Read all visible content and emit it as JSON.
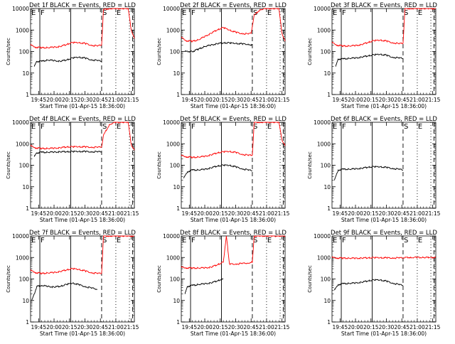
{
  "figure": {
    "panels": [
      {
        "title": "Det 1f BLACK = Events, RED = LLD",
        "ylabel": "Counts/sec",
        "xlabel": "Start Time (01-Apr-15 18:36:00)"
      },
      {
        "title": "Det 2f BLACK = Events, RED = LLD",
        "ylabel": "Counts/sec",
        "xlabel": "Start Time (01-Apr-15 18:36:00)"
      },
      {
        "title": "Det 3f BLACK = Events, RED = LLD",
        "ylabel": "Counts/sec",
        "xlabel": "Start Time (01-Apr-15 18:36:00)"
      },
      {
        "title": "Det 4f BLACK = Events, RED = LLD",
        "ylabel": "Counts/sec",
        "xlabel": "Start Time (01-Apr-15 18:36:00)"
      },
      {
        "title": "Det 5f BLACK = Events, RED = LLD",
        "ylabel": "Counts/sec",
        "xlabel": "Start Time (01-Apr-15 18:36:00)"
      },
      {
        "title": "Det 6f BLACK = Events, RED = LLD",
        "ylabel": "Counts/sec",
        "xlabel": "Start Time (01-Apr-15 18:36:00)"
      },
      {
        "title": "Det 7f BLACK = Events, RED = LLD",
        "ylabel": "Counts/sec",
        "xlabel": "Start Time (01-Apr-15 18:36:00)"
      },
      {
        "title": "Det 8f BLACK = Events, RED = LLD",
        "ylabel": "Counts/sec",
        "xlabel": "Start Time (01-Apr-15 18:36:00)"
      },
      {
        "title": "Det 9f BLACK = Events, RED = LLD",
        "ylabel": "Counts/sec",
        "xlabel": "Start Time (01-Apr-15 18:36:00)"
      }
    ],
    "x_tick_labels": [
      "19:45",
      "20:00",
      "20:15",
      "20:30",
      "20:45",
      "21:00",
      "21:15"
    ],
    "y_tick_labels": [
      "1",
      "10",
      "100",
      "1000",
      "10000"
    ],
    "marker_labels": [
      {
        "text": "E",
        "time": 19.62
      },
      {
        "text": "F",
        "time": 19.77
      },
      {
        "text": "S",
        "time": 20.77
      },
      {
        "text": "E",
        "time": 21.0
      }
    ]
  },
  "colors": {
    "events": "#000000",
    "lld": "#ff0000",
    "axes": "#000000"
  },
  "chart_data": [
    {
      "type": "line",
      "panel": 1,
      "y_scale": "log",
      "ylim": [
        1,
        10000
      ],
      "xlim": [
        19.62,
        21.3
      ],
      "x_unit": "hours UT",
      "series": [
        {
          "color": "black",
          "x": [
            19.68,
            19.72,
            19.8,
            19.9,
            20.0,
            20.1,
            20.2,
            20.3,
            20.4,
            20.5,
            20.6,
            20.7,
            20.77
          ],
          "values": [
            20,
            35,
            35,
            40,
            38,
            35,
            40,
            50,
            55,
            50,
            42,
            38,
            35
          ]
        },
        {
          "color": "red",
          "x": [
            19.62,
            19.7,
            19.8,
            19.9,
            20.0,
            20.1,
            20.2,
            20.3,
            20.4,
            20.5,
            20.6,
            20.7,
            20.77,
            20.8,
            20.9,
            21.0,
            21.1,
            21.2,
            21.25,
            21.3
          ],
          "values": [
            200,
            160,
            150,
            150,
            160,
            170,
            210,
            260,
            260,
            240,
            200,
            180,
            200,
            9000,
            10000,
            10000,
            10000,
            10000,
            1000,
            400
          ]
        }
      ]
    },
    {
      "type": "line",
      "panel": 2,
      "y_scale": "log",
      "ylim": [
        1,
        10000
      ],
      "xlim": [
        19.62,
        21.3
      ],
      "x_unit": "hours UT",
      "series": [
        {
          "color": "black",
          "x": [
            19.68,
            19.8,
            19.9,
            20.0,
            20.1,
            20.2,
            20.3,
            20.4,
            20.5,
            20.6,
            20.7,
            20.77
          ],
          "values": [
            100,
            100,
            130,
            170,
            200,
            230,
            250,
            250,
            240,
            230,
            220,
            200
          ]
        },
        {
          "color": "red",
          "x": [
            19.62,
            19.7,
            19.8,
            19.9,
            20.0,
            20.1,
            20.2,
            20.3,
            20.4,
            20.5,
            20.6,
            20.7,
            20.75,
            20.8,
            20.9,
            21.0,
            21.1,
            21.2,
            21.25,
            21.3
          ],
          "values": [
            450,
            320,
            300,
            350,
            500,
            700,
            1000,
            1300,
            1000,
            800,
            700,
            650,
            700,
            5000,
            9000,
            10000,
            10000,
            10000,
            700,
            300
          ]
        }
      ]
    },
    {
      "type": "line",
      "panel": 3,
      "y_scale": "log",
      "ylim": [
        1,
        10000
      ],
      "xlim": [
        19.62,
        21.3
      ],
      "x_unit": "hours UT",
      "series": [
        {
          "color": "black",
          "x": [
            19.68,
            19.72,
            19.8,
            19.9,
            20.0,
            20.1,
            20.2,
            20.3,
            20.4,
            20.5,
            20.6,
            20.7,
            20.77
          ],
          "values": [
            20,
            45,
            45,
            48,
            50,
            55,
            62,
            70,
            75,
            68,
            55,
            50,
            48
          ]
        },
        {
          "color": "red",
          "x": [
            19.62,
            19.7,
            19.8,
            19.9,
            20.0,
            20.1,
            20.2,
            20.3,
            20.4,
            20.5,
            20.6,
            20.7,
            20.77,
            20.8,
            20.9,
            21.0,
            21.1,
            21.2,
            21.25,
            21.3
          ],
          "values": [
            260,
            200,
            180,
            180,
            190,
            210,
            260,
            320,
            340,
            310,
            260,
            230,
            240,
            10000,
            10000,
            10000,
            10000,
            10000,
            10000,
            10000
          ]
        }
      ]
    },
    {
      "type": "line",
      "panel": 4,
      "y_scale": "log",
      "ylim": [
        1,
        10000
      ],
      "xlim": [
        19.62,
        21.3
      ],
      "x_unit": "hours UT",
      "series": [
        {
          "color": "black",
          "x": [
            19.68,
            19.72,
            19.8,
            19.9,
            20.0,
            20.1,
            20.2,
            20.3,
            20.4,
            20.5,
            20.6,
            20.7,
            20.77
          ],
          "values": [
            250,
            380,
            400,
            400,
            410,
            420,
            420,
            430,
            440,
            440,
            430,
            420,
            420
          ]
        },
        {
          "color": "red",
          "x": [
            19.62,
            19.7,
            19.8,
            19.9,
            20.0,
            20.1,
            20.2,
            20.3,
            20.4,
            20.5,
            20.6,
            20.7,
            20.77,
            20.8,
            20.9,
            21.0,
            21.1,
            21.2,
            21.25,
            21.3
          ],
          "values": [
            800,
            650,
            600,
            600,
            620,
            650,
            700,
            720,
            730,
            720,
            700,
            680,
            700,
            2500,
            8000,
            10000,
            10000,
            10000,
            900,
            500
          ]
        }
      ]
    },
    {
      "type": "line",
      "panel": 5,
      "y_scale": "log",
      "ylim": [
        1,
        10000
      ],
      "xlim": [
        19.62,
        21.3
      ],
      "x_unit": "hours UT",
      "series": [
        {
          "color": "black",
          "x": [
            19.66,
            19.72,
            19.8,
            19.9,
            20.0,
            20.1,
            20.2,
            20.3,
            20.4,
            20.5,
            20.6,
            20.7,
            20.77
          ],
          "values": [
            25,
            50,
            60,
            60,
            65,
            75,
            90,
            100,
            100,
            85,
            70,
            60,
            55
          ]
        },
        {
          "color": "red",
          "x": [
            19.62,
            19.7,
            19.8,
            19.9,
            20.0,
            20.1,
            20.2,
            20.3,
            20.4,
            20.5,
            20.6,
            20.7,
            20.77,
            20.8,
            20.9,
            21.0,
            21.1,
            21.2,
            21.25,
            21.3
          ],
          "values": [
            280,
            250,
            230,
            240,
            260,
            300,
            370,
            420,
            440,
            400,
            330,
            290,
            290,
            10000,
            10000,
            10000,
            10000,
            10000,
            1500,
            800
          ]
        }
      ]
    },
    {
      "type": "line",
      "panel": 6,
      "y_scale": "log",
      "ylim": [
        1,
        10000
      ],
      "xlim": [
        19.62,
        21.3
      ],
      "x_unit": "hours UT",
      "series": [
        {
          "color": "black",
          "x": [
            19.66,
            19.72,
            19.8,
            19.9,
            20.0,
            20.1,
            20.2,
            20.3,
            20.4,
            20.5,
            20.6,
            20.7,
            20.77
          ],
          "values": [
            20,
            60,
            65,
            65,
            68,
            72,
            80,
            85,
            85,
            80,
            72,
            65,
            60
          ]
        }
      ]
    },
    {
      "type": "line",
      "panel": 7,
      "y_scale": "log",
      "ylim": [
        1,
        10000
      ],
      "xlim": [
        19.62,
        21.3
      ],
      "x_unit": "hours UT",
      "series": [
        {
          "color": "black",
          "x": [
            19.64,
            19.68,
            19.72,
            19.8,
            19.9,
            20.0,
            20.1,
            20.2,
            20.3,
            20.4,
            20.5,
            20.6,
            20.7
          ],
          "values": [
            10,
            20,
            45,
            50,
            45,
            42,
            45,
            55,
            65,
            55,
            45,
            38,
            33
          ]
        },
        {
          "color": "red",
          "x": [
            19.62,
            19.7,
            19.8,
            19.9,
            20.0,
            20.1,
            20.2,
            20.3,
            20.4,
            20.5,
            20.6,
            20.7,
            20.77,
            20.8,
            20.9,
            21.0,
            21.1,
            21.2,
            21.25,
            21.3
          ],
          "values": [
            250,
            200,
            180,
            190,
            200,
            220,
            260,
            300,
            280,
            240,
            200,
            180,
            180,
            10000,
            10000,
            10000,
            10000,
            10000,
            10000,
            10000
          ]
        }
      ]
    },
    {
      "type": "line",
      "panel": 8,
      "y_scale": "log",
      "ylim": [
        1,
        10000
      ],
      "xlim": [
        19.62,
        21.3
      ],
      "x_unit": "hours UT",
      "series": [
        {
          "color": "black",
          "x": [
            19.68,
            19.72,
            19.8,
            19.9,
            20.0,
            20.1,
            20.2,
            20.25,
            20.3
          ],
          "values": [
            20,
            45,
            50,
            55,
            60,
            65,
            80,
            90,
            100
          ]
        },
        {
          "color": "red",
          "x": [
            19.62,
            19.7,
            19.8,
            19.9,
            20.0,
            20.1,
            20.2,
            20.3,
            20.35,
            20.4,
            20.5,
            20.6,
            20.7,
            20.77,
            20.8,
            20.9,
            21.0,
            21.1,
            21.2,
            21.25,
            21.3
          ],
          "values": [
            350,
            330,
            320,
            320,
            330,
            350,
            450,
            600,
            10000,
            500,
            500,
            520,
            550,
            600,
            10000,
            10000,
            10000,
            10000,
            10000,
            10000,
            10000
          ]
        }
      ]
    },
    {
      "type": "line",
      "panel": 9,
      "y_scale": "log",
      "ylim": [
        1,
        10000
      ],
      "xlim": [
        19.62,
        21.3
      ],
      "x_unit": "hours UT",
      "series": [
        {
          "color": "black",
          "x": [
            19.66,
            19.72,
            19.8,
            19.9,
            20.0,
            20.1,
            20.2,
            20.3,
            20.4,
            20.5,
            20.6,
            20.7,
            20.77
          ],
          "values": [
            30,
            55,
            60,
            62,
            65,
            70,
            80,
            90,
            90,
            80,
            65,
            55,
            50
          ]
        },
        {
          "color": "red",
          "x": [
            19.62,
            19.7,
            19.8,
            19.9,
            20.0,
            20.1,
            20.2,
            20.3,
            20.4,
            20.5,
            20.6,
            20.7,
            20.77,
            20.8,
            20.9,
            21.0,
            21.1,
            21.2,
            21.25,
            21.3
          ],
          "values": [
            1000,
            950,
            930,
            920,
            920,
            930,
            950,
            970,
            980,
            970,
            960,
            950,
            950,
            1000,
            1000,
            1000,
            1000,
            1000,
            1000,
            1000
          ]
        }
      ]
    }
  ]
}
